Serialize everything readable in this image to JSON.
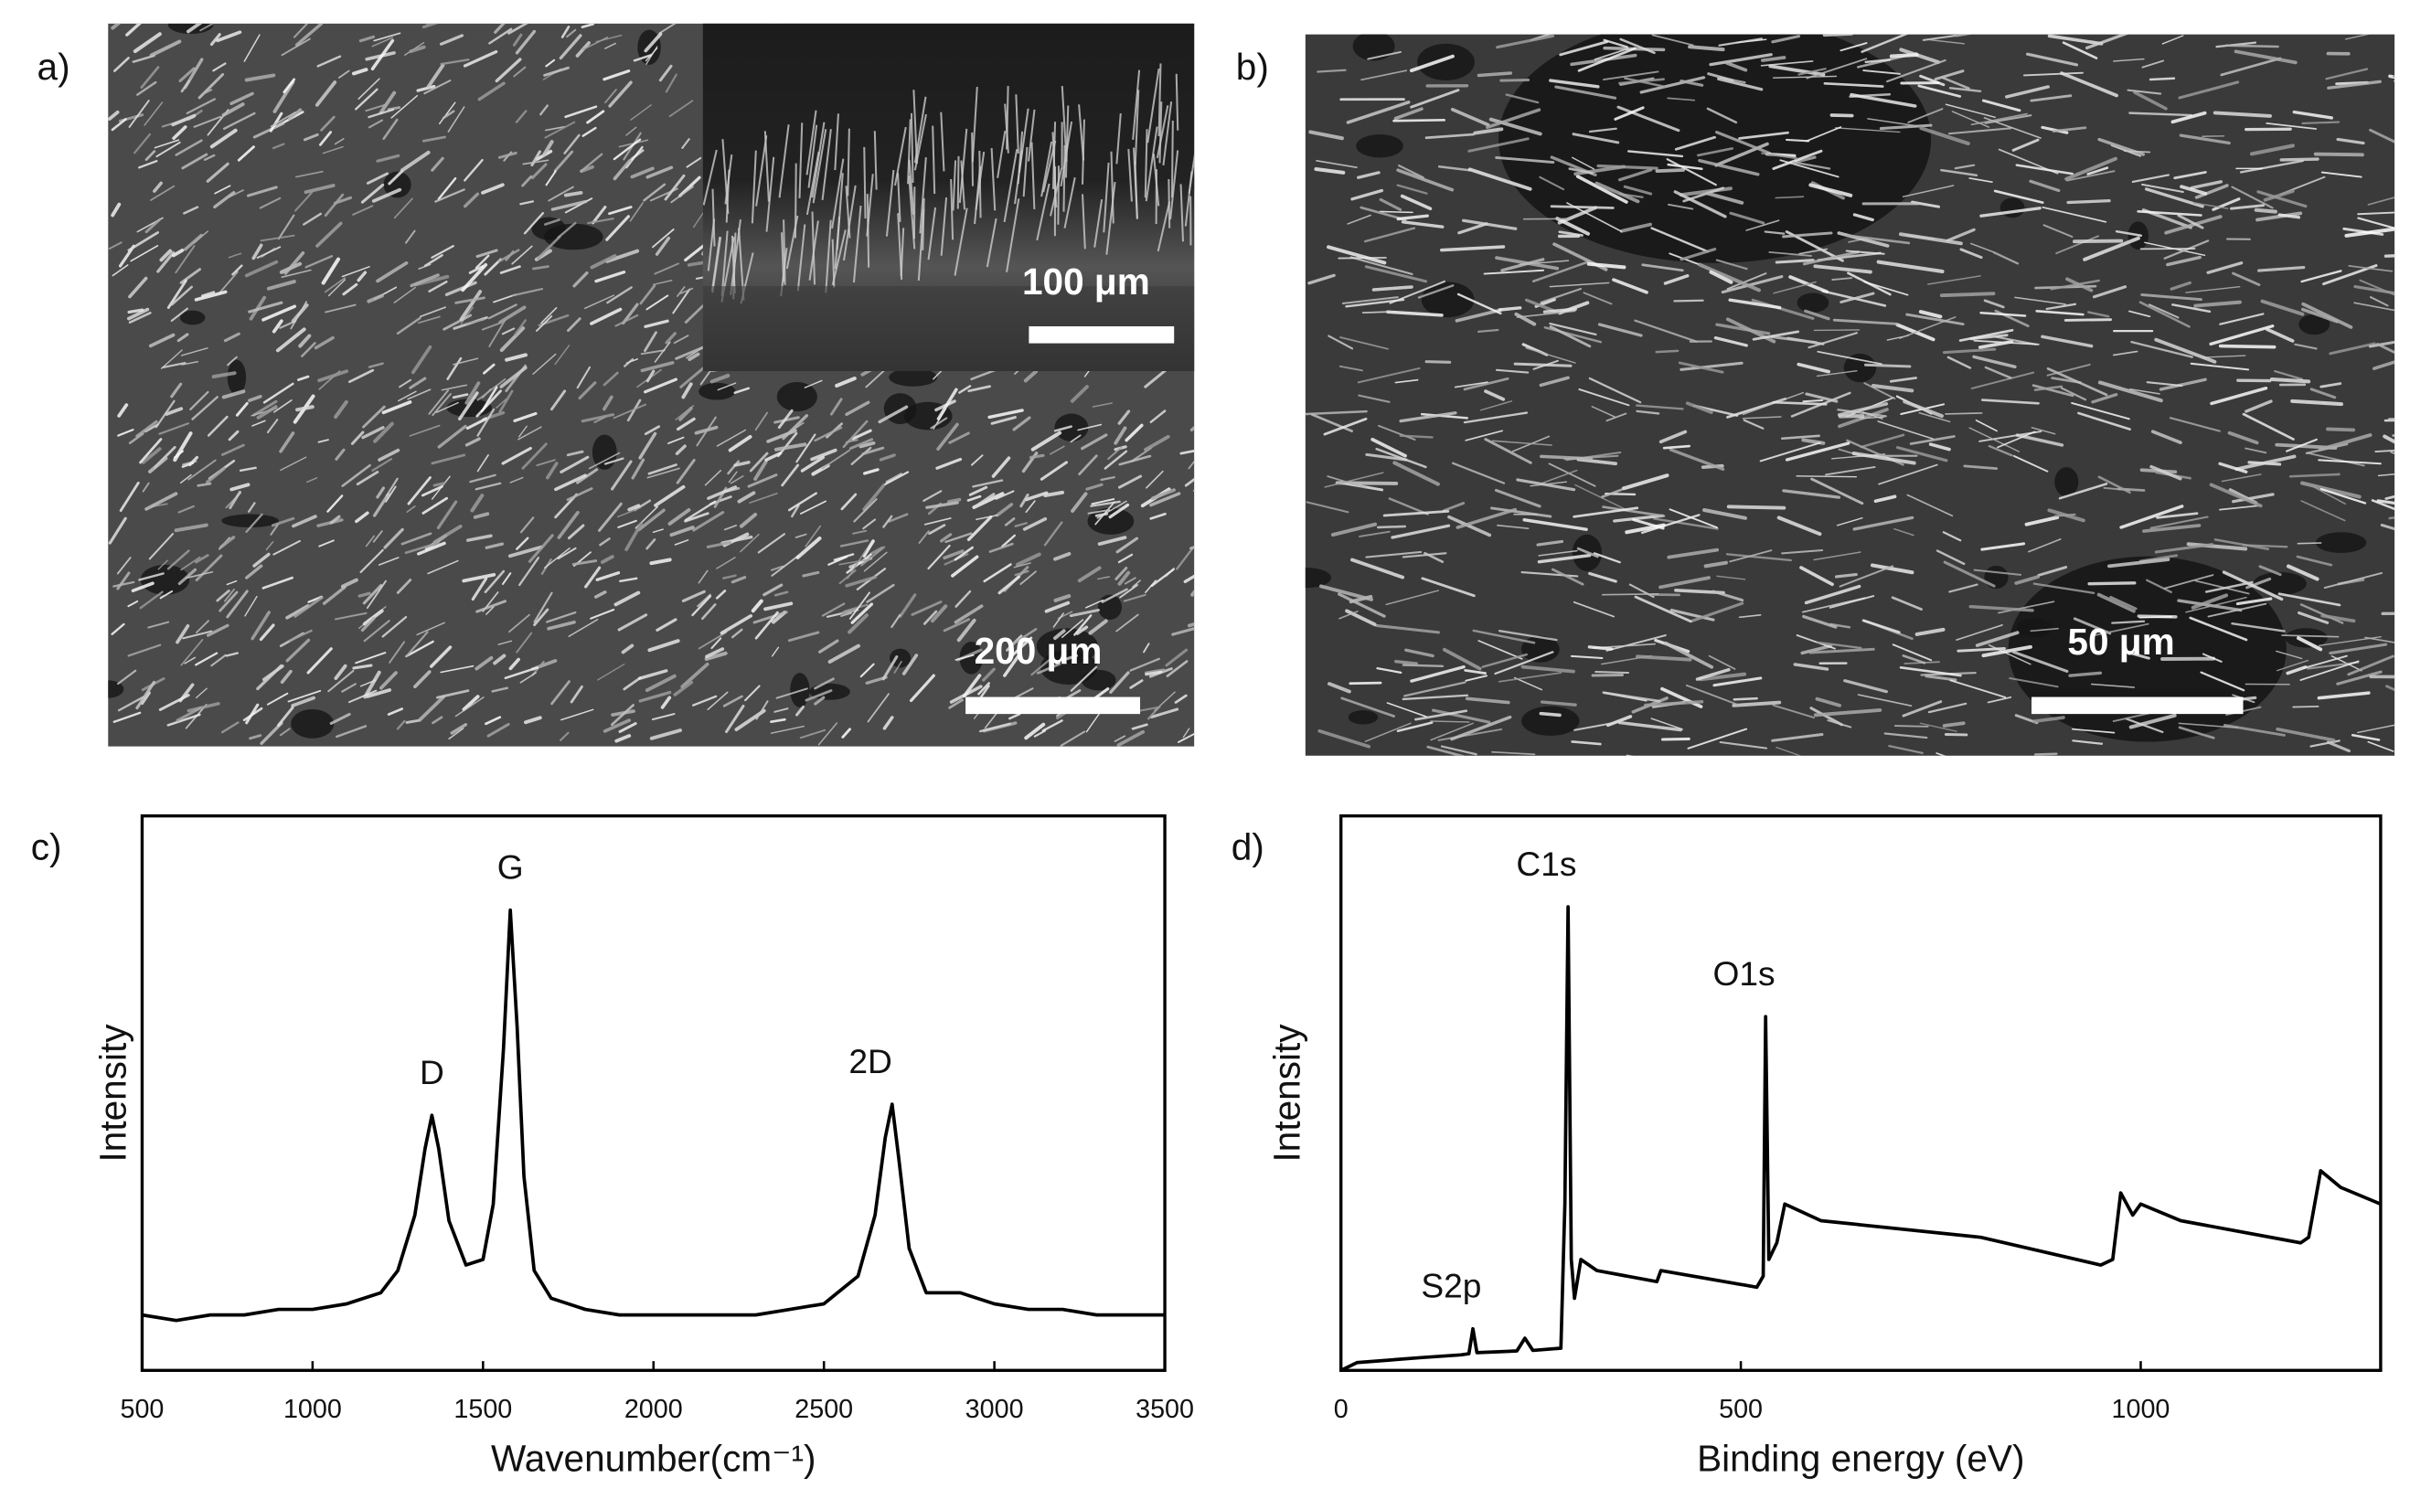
{
  "panels": [
    {
      "label": "a)",
      "scale_bar": "200 μm",
      "inset_scale_bar": "100 μm"
    },
    {
      "label": "b)",
      "scale_bar": "50 μm"
    }
  ],
  "chart_data": [
    {
      "type": "line",
      "panel_label": "c)",
      "xlabel": "Wavenumber(cm⁻¹)",
      "ylabel": "Intensity",
      "color": "#000000",
      "x": [
        500,
        600,
        700,
        800,
        900,
        1000,
        1100,
        1200,
        1250,
        1300,
        1330,
        1350,
        1370,
        1400,
        1450,
        1500,
        1530,
        1560,
        1580,
        1600,
        1620,
        1650,
        1700,
        1800,
        1900,
        2000,
        2100,
        2200,
        2300,
        2400,
        2500,
        2600,
        2650,
        2680,
        2700,
        2720,
        2750,
        2800,
        2900,
        3000,
        3100,
        3200,
        3300,
        3400,
        3500
      ],
      "values": [
        10,
        9,
        10,
        10,
        11,
        11,
        12,
        14,
        18,
        28,
        40,
        46,
        40,
        27,
        19,
        20,
        30,
        58,
        83,
        62,
        35,
        18,
        13,
        11,
        10,
        10,
        10,
        10,
        10,
        11,
        12,
        17,
        28,
        42,
        48,
        38,
        22,
        14,
        14,
        12,
        11,
        11,
        10,
        10,
        10
      ],
      "xlim": [
        500,
        3500
      ],
      "xticks": [
        500,
        1000,
        1500,
        2000,
        2500,
        3000,
        3500
      ],
      "ylim": [
        0,
        100
      ],
      "annotations": [
        {
          "text": "D",
          "x": 1350,
          "y": 46
        },
        {
          "text": "G",
          "x": 1580,
          "y": 83
        },
        {
          "text": "2D",
          "x": 2700,
          "y": 48
        }
      ]
    },
    {
      "type": "line",
      "panel_label": "d)",
      "xlabel": "Binding energy (eV)",
      "ylabel": "Intensity",
      "color": "#000000",
      "x": [
        0,
        20,
        100,
        150,
        160,
        165,
        170,
        220,
        230,
        240,
        275,
        280,
        284,
        288,
        292,
        300,
        320,
        395,
        400,
        520,
        528,
        531,
        535,
        545,
        555,
        600,
        800,
        950,
        965,
        975,
        990,
        1000,
        1050,
        1200,
        1210,
        1225,
        1250,
        1300
      ],
      "values": [
        0,
        1.4,
        2.3,
        2.8,
        3,
        7.5,
        3.2,
        3.5,
        5.8,
        3.6,
        4,
        30,
        83.6,
        20,
        13,
        20,
        18,
        16,
        18,
        15,
        17,
        63.8,
        20,
        23,
        30,
        27,
        24,
        19,
        20,
        32,
        28,
        30,
        27,
        23,
        24,
        36,
        33,
        30
      ],
      "xlim": [
        0,
        1300
      ],
      "xticks": [
        0,
        500,
        1000
      ],
      "ylim": [
        0,
        100
      ],
      "annotations": [
        {
          "text": "S2p",
          "x": 165,
          "y": 7.5
        },
        {
          "text": "C1s",
          "x": 284,
          "y": 83.6
        },
        {
          "text": "O1s",
          "x": 531,
          "y": 63.8
        }
      ]
    }
  ]
}
